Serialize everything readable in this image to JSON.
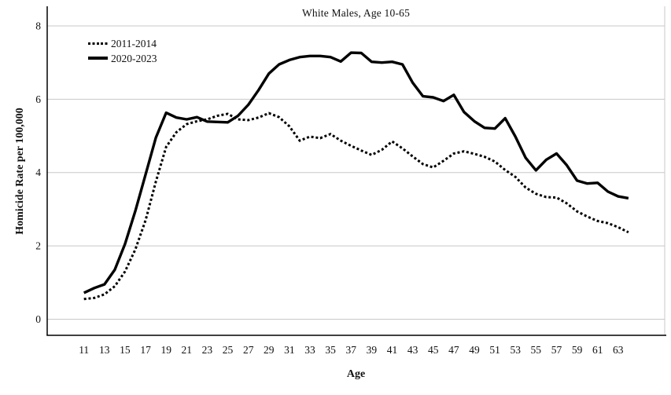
{
  "chart": {
    "title": "White Males, Age 10-65",
    "xlabel": "Age",
    "ylabel": "Homicide Rate per 100,000",
    "legend": [
      {
        "label": "2011-2014",
        "style": "dotted"
      },
      {
        "label": "2020-2023",
        "style": "solid"
      }
    ]
  },
  "chart_data": {
    "type": "line",
    "title": "White Males, Age 10-65",
    "xlabel": "Age",
    "ylabel": "Homicide Rate per 100,000",
    "x": [
      11,
      12,
      13,
      14,
      15,
      16,
      17,
      18,
      19,
      20,
      21,
      22,
      23,
      24,
      25,
      26,
      27,
      28,
      29,
      30,
      31,
      32,
      33,
      34,
      35,
      36,
      37,
      38,
      39,
      40,
      41,
      42,
      43,
      44,
      45,
      46,
      47,
      48,
      49,
      50,
      51,
      52,
      53,
      54,
      55,
      56,
      57,
      58,
      59,
      60,
      61,
      62,
      63,
      64
    ],
    "series": [
      {
        "name": "2011-2014",
        "style": "dotted",
        "color": "#000000",
        "values": [
          0.55,
          0.58,
          0.68,
          0.9,
          1.3,
          1.9,
          2.7,
          3.75,
          4.7,
          5.1,
          5.32,
          5.4,
          5.45,
          5.55,
          5.6,
          5.45,
          5.43,
          5.5,
          5.62,
          5.51,
          5.26,
          4.87,
          4.98,
          4.94,
          5.05,
          4.87,
          4.73,
          4.6,
          4.48,
          4.62,
          4.85,
          4.66,
          4.44,
          4.23,
          4.14,
          4.32,
          4.52,
          4.58,
          4.51,
          4.43,
          4.3,
          4.07,
          3.88,
          3.59,
          3.42,
          3.33,
          3.32,
          3.16,
          2.94,
          2.8,
          2.68,
          2.62,
          2.51,
          2.37
        ]
      },
      {
        "name": "2020-2023",
        "style": "solid",
        "color": "#000000",
        "values": [
          0.72,
          0.85,
          0.95,
          1.35,
          2.05,
          2.95,
          3.95,
          4.95,
          5.63,
          5.5,
          5.45,
          5.51,
          5.39,
          5.38,
          5.37,
          5.55,
          5.85,
          6.25,
          6.7,
          6.95,
          7.07,
          7.15,
          7.18,
          7.18,
          7.15,
          7.03,
          7.27,
          7.26,
          7.02,
          7.0,
          7.02,
          6.95,
          6.45,
          6.08,
          6.05,
          5.95,
          6.12,
          5.65,
          5.4,
          5.22,
          5.2,
          5.48,
          4.98,
          4.4,
          4.06,
          4.35,
          4.52,
          4.2,
          3.78,
          3.7,
          3.72,
          3.48,
          3.35,
          3.3
        ]
      }
    ],
    "ylim": [
      0,
      8
    ],
    "yticks": [
      0,
      2,
      4,
      6,
      8
    ],
    "xticks": [
      11,
      13,
      15,
      17,
      19,
      21,
      23,
      25,
      27,
      29,
      31,
      33,
      35,
      37,
      39,
      41,
      43,
      45,
      47,
      49,
      51,
      53,
      55,
      57,
      59,
      61,
      63
    ],
    "grid": true,
    "legend_position": "top-left",
    "gridline_color": "#c8c8c8",
    "axis_color": "#000000",
    "text_color": "#111111"
  }
}
